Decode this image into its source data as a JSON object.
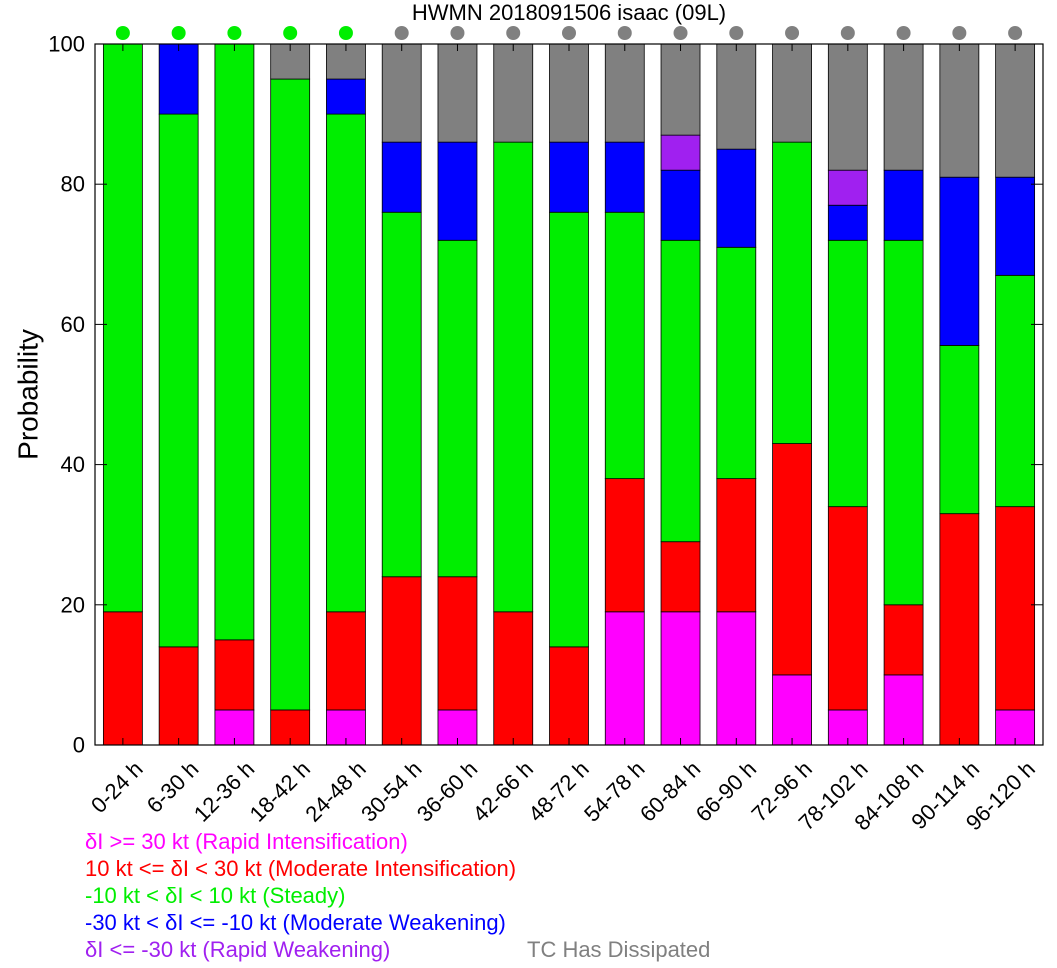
{
  "chart_data": {
    "type": "bar",
    "stacked": true,
    "title": "HWMN 2018091506 isaac (09L)",
    "ylabel": "Probability",
    "xlabel": "",
    "ylim": [
      0,
      100
    ],
    "yticks": [
      0,
      20,
      40,
      60,
      80,
      100
    ],
    "categories": [
      "0-24 h",
      "6-30 h",
      "12-36 h",
      "18-42 h",
      "24-48 h",
      "30-54 h",
      "36-60 h",
      "42-66 h",
      "48-72 h",
      "54-78 h",
      "60-84 h",
      "66-90 h",
      "72-96 h",
      "78-102 h",
      "84-108 h",
      "90-114 h",
      "96-120 h"
    ],
    "series": [
      {
        "key": "ri",
        "color": "#ff00ff",
        "values": [
          0,
          0,
          5,
          0,
          5,
          0,
          5,
          0,
          0,
          19,
          19,
          19,
          10,
          5,
          10,
          0,
          5
        ]
      },
      {
        "key": "mi",
        "color": "#ff0000",
        "values": [
          19,
          14,
          10,
          5,
          14,
          24,
          19,
          19,
          14,
          19,
          10,
          19,
          33,
          29,
          10,
          33,
          29
        ]
      },
      {
        "key": "steady",
        "color": "#00ee00",
        "values": [
          81,
          76,
          85,
          90,
          71,
          52,
          48,
          67,
          62,
          38,
          43,
          33,
          43,
          38,
          52,
          24,
          33
        ]
      },
      {
        "key": "mw",
        "color": "#0000ff",
        "values": [
          0,
          10,
          0,
          0,
          5,
          10,
          14,
          0,
          10,
          10,
          10,
          14,
          0,
          5,
          10,
          24,
          14
        ]
      },
      {
        "key": "rw",
        "color": "#a020f0",
        "values": [
          0,
          0,
          0,
          0,
          0,
          0,
          0,
          0,
          0,
          0,
          5,
          0,
          0,
          5,
          0,
          0,
          0
        ]
      },
      {
        "key": "dissipated",
        "color": "#808080",
        "values": [
          0,
          0,
          0,
          5,
          5,
          14,
          14,
          14,
          14,
          14,
          13,
          15,
          14,
          18,
          18,
          19,
          19
        ]
      }
    ],
    "status_dots": [
      "#00ee00",
      "#00ee00",
      "#00ee00",
      "#00ee00",
      "#00ee00",
      "#808080",
      "#808080",
      "#808080",
      "#808080",
      "#808080",
      "#808080",
      "#808080",
      "#808080",
      "#808080",
      "#808080",
      "#808080",
      "#808080"
    ]
  },
  "legend": [
    {
      "text": "δI >= 30 kt (Rapid Intensification)",
      "color": "#ff00ff"
    },
    {
      "text": "10 kt <= δI < 30 kt (Moderate Intensification)",
      "color": "#ff0000"
    },
    {
      "text": "-10 kt < δI < 10 kt (Steady)",
      "color": "#00ee00"
    },
    {
      "text": "-30 kt < δI <= -10 kt (Moderate Weakening)",
      "color": "#0000ff"
    },
    {
      "text": "δI <= -30 kt (Rapid Weakening)",
      "color": "#a020f0"
    },
    {
      "text": "TC Has Dissipated",
      "color": "#808080"
    }
  ]
}
